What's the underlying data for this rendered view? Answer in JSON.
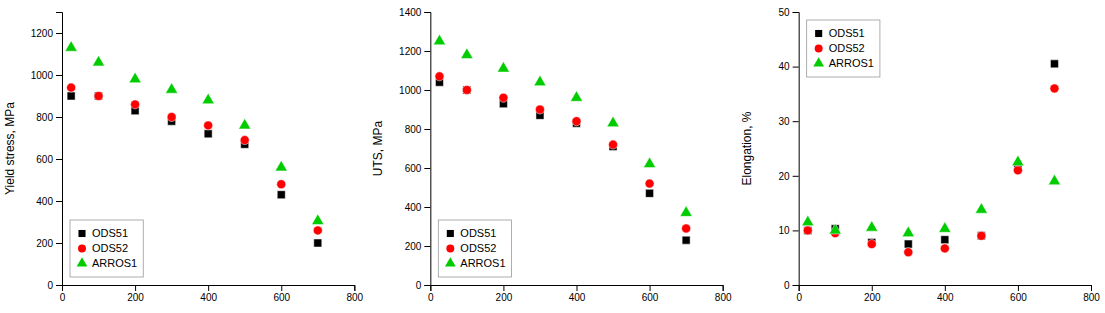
{
  "chart_data": [
    {
      "type": "scatter",
      "ylabel": "Yield stress, MPa",
      "x": [
        25,
        100,
        200,
        300,
        400,
        500,
        600,
        700
      ],
      "series": [
        {
          "name": "ODS51",
          "color": "#000000",
          "marker": "square",
          "values": [
            900,
            900,
            830,
            780,
            720,
            670,
            430,
            200
          ]
        },
        {
          "name": "ODS52",
          "color": "#ff0000",
          "marker": "circle",
          "values": [
            940,
            900,
            860,
            800,
            760,
            690,
            480,
            260
          ]
        },
        {
          "name": "ARROS1",
          "color": "#00cc00",
          "marker": "triangle",
          "values": [
            1130,
            1060,
            980,
            930,
            880,
            760,
            560,
            305
          ]
        }
      ],
      "xlim": [
        0,
        800
      ],
      "xticks": [
        0,
        200,
        400,
        600,
        800
      ],
      "ylim": [
        0,
        1300
      ],
      "yticks": [
        0,
        200,
        400,
        600,
        800,
        1000,
        1200
      ],
      "legend": "lower left"
    },
    {
      "type": "scatter",
      "ylabel": "UTS, MPa",
      "x": [
        25,
        100,
        200,
        300,
        400,
        500,
        600,
        700
      ],
      "series": [
        {
          "name": "ODS51",
          "color": "#000000",
          "marker": "square",
          "values": [
            1040,
            1000,
            930,
            870,
            830,
            710,
            470,
            230
          ]
        },
        {
          "name": "ODS52",
          "color": "#ff0000",
          "marker": "circle",
          "values": [
            1070,
            1000,
            960,
            900,
            840,
            720,
            520,
            290
          ]
        },
        {
          "name": "ARROS1",
          "color": "#00cc00",
          "marker": "triangle",
          "values": [
            1250,
            1180,
            1110,
            1040,
            960,
            830,
            620,
            370
          ]
        }
      ],
      "xlim": [
        0,
        800
      ],
      "xticks": [
        0,
        200,
        400,
        600,
        800
      ],
      "ylim": [
        0,
        1400
      ],
      "yticks": [
        0,
        200,
        400,
        600,
        800,
        1000,
        1200,
        1400
      ],
      "legend": "lower left"
    },
    {
      "type": "scatter",
      "ylabel": "Elongation, %",
      "x": [
        25,
        100,
        200,
        300,
        400,
        500,
        600,
        700
      ],
      "series": [
        {
          "name": "ODS51",
          "color": "#000000",
          "marker": "square",
          "values": [
            10.0,
            10.3,
            7.8,
            7.5,
            8.3,
            9.0,
            21.5,
            40.5
          ]
        },
        {
          "name": "ODS52",
          "color": "#ff0000",
          "marker": "circle",
          "values": [
            10.0,
            9.5,
            7.5,
            6.0,
            6.7,
            9.0,
            21.0,
            36.0
          ]
        },
        {
          "name": "ARROS1",
          "color": "#00cc00",
          "marker": "triangle",
          "values": [
            11.5,
            10.0,
            10.5,
            9.5,
            10.3,
            13.8,
            22.5,
            19.0
          ]
        }
      ],
      "xlim": [
        0,
        800
      ],
      "xticks": [
        0,
        200,
        400,
        600,
        800
      ],
      "ylim": [
        0,
        50
      ],
      "yticks": [
        0,
        10,
        20,
        30,
        40,
        50
      ],
      "legend": "upper left"
    }
  ]
}
